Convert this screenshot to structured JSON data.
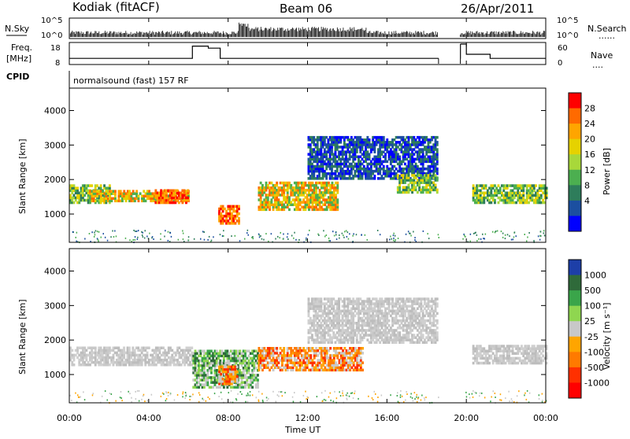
{
  "header": {
    "station": "Kodiak (fitACF)",
    "beam": "Beam 06",
    "date": "26/Apr/2011"
  },
  "labels": {
    "nsky": "N.Sky",
    "nsearch": "N.Search",
    "freq_line1": "Freq.",
    "freq_line2": "[MHz]",
    "nave": "Nave",
    "cpid": "CPID",
    "cpid_text": "normalsound (fast) 157 RF",
    "nsky_ticks": [
      "10^5",
      "10^0"
    ],
    "nsearch_ticks": [
      "10^5",
      "10^0"
    ],
    "freq_ticks": [
      "18",
      "8"
    ],
    "nave_ticks": [
      "60",
      "0"
    ],
    "dotted": "......",
    "dotted_nave": "....",
    "slant_range": "Slant Range [km]",
    "power_label": "Power [dB]",
    "velocity_label": "Velocity [m s⁻¹]",
    "x_title": "Time UT"
  },
  "chart_data": {
    "type": "heatmap",
    "x_ticks": [
      "00:00",
      "04:00",
      "08:00",
      "12:00",
      "16:00",
      "20:00",
      "00:00"
    ],
    "x_range_hours": [
      0,
      24
    ],
    "y_ticks": [
      "4000",
      "3000",
      "2000",
      "1000"
    ],
    "y_range_km": [
      180,
      4650
    ],
    "power_colorbar": {
      "ticks": [
        "28",
        "24",
        "20",
        "16",
        "12",
        "8",
        "4"
      ],
      "colors": [
        "#ff0000",
        "#ff6a00",
        "#ffa500",
        "#e6d200",
        "#a8d83a",
        "#4caf50",
        "#2e7d5b",
        "#1c4fa0",
        "#0000ff"
      ]
    },
    "velocity_colorbar": {
      "ticks": [
        "1000",
        "500",
        "100",
        "25",
        "-25",
        "-100",
        "-500",
        "-1000"
      ],
      "colors": [
        "#1d3fa8",
        "#2f6a3a",
        "#3aa54a",
        "#8fd650",
        "#c8c8c8",
        "#ffa500",
        "#ff7a00",
        "#ff3000",
        "#ff0000"
      ]
    },
    "freq_mhz": [
      {
        "t": 0,
        "v": 11
      },
      {
        "t": 6.2,
        "v": 11
      },
      {
        "t": 6.2,
        "v": 17
      },
      {
        "t": 7.0,
        "v": 17
      },
      {
        "t": 7.0,
        "v": 16
      },
      {
        "t": 7.6,
        "v": 16
      },
      {
        "t": 7.6,
        "v": 11
      },
      {
        "t": 18.6,
        "v": 11
      },
      {
        "t": 19.7,
        "v": 11
      },
      {
        "t": 19.7,
        "v": 18
      },
      {
        "t": 20.0,
        "v": 18
      },
      {
        "t": 20.0,
        "v": 13
      },
      {
        "t": 21.2,
        "v": 13
      },
      {
        "t": 21.2,
        "v": 11
      },
      {
        "t": 24,
        "v": 11
      }
    ],
    "data_gaps_hours": [
      [
        18.6,
        19.7
      ]
    ],
    "power_regions": [
      {
        "t0": 0,
        "t1": 2,
        "r0": 1300,
        "r1": 1800,
        "level": "green"
      },
      {
        "t0": 1,
        "t1": 6,
        "r0": 1350,
        "r1": 1650,
        "level": "orange"
      },
      {
        "t0": 4.3,
        "t1": 6,
        "r0": 1300,
        "r1": 1700,
        "level": "red"
      },
      {
        "t0": 7.5,
        "t1": 8.5,
        "r0": 700,
        "r1": 1200,
        "level": "red"
      },
      {
        "t0": 9.5,
        "t1": 13.5,
        "r0": 1100,
        "r1": 1900,
        "level": "orange"
      },
      {
        "t0": 12,
        "t1": 18.5,
        "r0": 2000,
        "r1": 3200,
        "level": "blue"
      },
      {
        "t0": 16.5,
        "t1": 18.5,
        "r0": 1600,
        "r1": 2100,
        "level": "green"
      },
      {
        "t0": 20.3,
        "t1": 24,
        "r0": 1300,
        "r1": 1800,
        "level": "green"
      }
    ],
    "velocity_regions": [
      {
        "t0": 0,
        "t1": 6.2,
        "r0": 1250,
        "r1": 1800,
        "level": "grey"
      },
      {
        "t0": 6.2,
        "t1": 9.5,
        "r0": 600,
        "r1": 1700,
        "level": "green"
      },
      {
        "t0": 7.5,
        "t1": 8.4,
        "r0": 700,
        "r1": 1200,
        "level": "orange"
      },
      {
        "t0": 9.5,
        "t1": 14.8,
        "r0": 1100,
        "r1": 1800,
        "level": "orange"
      },
      {
        "t0": 12,
        "t1": 18.5,
        "r0": 1900,
        "r1": 3200,
        "level": "grey"
      },
      {
        "t0": 20.3,
        "t1": 24,
        "r0": 1300,
        "r1": 1800,
        "level": "grey"
      }
    ]
  }
}
